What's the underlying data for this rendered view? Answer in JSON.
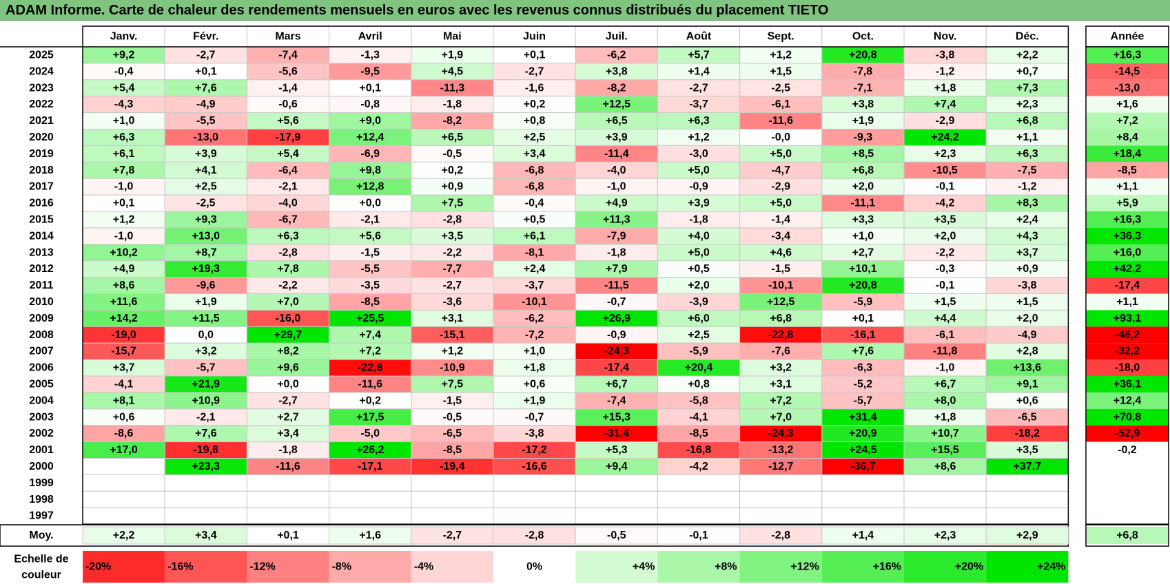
{
  "title": "ADAM Informe. Carte de chaleur des rendements mensuels en euros avec les revenus connus distribués du placement TIETO",
  "chart_data": {
    "type": "heatmap",
    "columns": [
      "Janv.",
      "Févr.",
      "Mars",
      "Avril",
      "Mai",
      "Juin",
      "Juil.",
      "Août",
      "Sept.",
      "Oct.",
      "Nov.",
      "Déc."
    ],
    "year_header": "Année",
    "rows": [
      {
        "label": "2025",
        "cells": [
          "+9,2",
          "-2,7",
          "-7,4",
          "-1,3",
          "+1,9",
          "+0,1",
          "-6,2",
          "+5,7",
          "+1,2",
          "+20,8",
          "-3,8",
          "+2,2"
        ],
        "year": "+16,3"
      },
      {
        "label": "2024",
        "cells": [
          "-0,4",
          "+0,1",
          "-5,6",
          "-9,5",
          "+4,5",
          "-2,7",
          "+3,8",
          "+1,4",
          "+1,5",
          "-7,8",
          "-1,2",
          "+0,7"
        ],
        "year": "-14,5"
      },
      {
        "label": "2023",
        "cells": [
          "+5,4",
          "+7,6",
          "-1,4",
          "+0,1",
          "-11,3",
          "-1,6",
          "-8,2",
          "-2,7",
          "-2,5",
          "-7,1",
          "+1,8",
          "+7,3"
        ],
        "year": "-13,0"
      },
      {
        "label": "2022",
        "cells": [
          "-4,3",
          "-4,9",
          "-0,6",
          "-0,8",
          "-1,8",
          "+0,2",
          "+12,5",
          "-3,7",
          "-6,1",
          "+3,8",
          "+7,4",
          "+2,3"
        ],
        "year": "+1,6"
      },
      {
        "label": "2021",
        "cells": [
          "+1,0",
          "-5,5",
          "+5,6",
          "+9,0",
          "-8,2",
          "+0,8",
          "+6,5",
          "+6,3",
          "-11,6",
          "+1,9",
          "-2,9",
          "+6,8"
        ],
        "year": "+7,2"
      },
      {
        "label": "2020",
        "cells": [
          "+6,3",
          "-13,0",
          "-17,9",
          "+12,4",
          "+6,5",
          "+2,5",
          "+3,9",
          "+1,2",
          "-0,0",
          "-9,3",
          "+24,2",
          "+1,1"
        ],
        "year": "+8,4"
      },
      {
        "label": "2019",
        "cells": [
          "+6,1",
          "+3,9",
          "+5,4",
          "-6,9",
          "-0,5",
          "+3,4",
          "-11,4",
          "-3,0",
          "+5,0",
          "+8,5",
          "+2,3",
          "+6,3"
        ],
        "year": "+18,4"
      },
      {
        "label": "2018",
        "cells": [
          "+7,8",
          "+4,1",
          "-6,4",
          "+9,8",
          "+0,2",
          "-6,8",
          "-4,0",
          "+5,0",
          "-4,7",
          "+6,8",
          "-10,5",
          "-7,5"
        ],
        "year": "-8,5"
      },
      {
        "label": "2017",
        "cells": [
          "-1,0",
          "+2,5",
          "-2,1",
          "+12,8",
          "+0,9",
          "-6,8",
          "-1,0",
          "-0,9",
          "-2,9",
          "+2,0",
          "-0,1",
          "-1,2"
        ],
        "year": "+1,1"
      },
      {
        "label": "2016",
        "cells": [
          "+0,1",
          "-2,5",
          "-4,0",
          "+0,0",
          "+7,5",
          "-0,4",
          "+4,9",
          "+3,9",
          "+5,0",
          "-11,1",
          "-4,2",
          "+8,3"
        ],
        "year": "+5,9"
      },
      {
        "label": "2015",
        "cells": [
          "+1,2",
          "+9,3",
          "-6,7",
          "-2,1",
          "-2,8",
          "+0,5",
          "+11,3",
          "-1,8",
          "-1,4",
          "+3,3",
          "+3,5",
          "+2,4"
        ],
        "year": "+16,3"
      },
      {
        "label": "2014",
        "cells": [
          "-1,0",
          "+13,0",
          "+6,3",
          "+5,6",
          "+3,5",
          "+6,1",
          "-7,9",
          "+4,0",
          "-3,4",
          "+1,0",
          "+2,0",
          "+4,3"
        ],
        "year": "+36,3"
      },
      {
        "label": "2013",
        "cells": [
          "+10,2",
          "+8,7",
          "-2,8",
          "-1,5",
          "-2,2",
          "-8,1",
          "-1,8",
          "+5,0",
          "+4,6",
          "+2,7",
          "-2,2",
          "+3,7"
        ],
        "year": "+16,0"
      },
      {
        "label": "2012",
        "cells": [
          "+4,9",
          "+19,3",
          "+7,8",
          "-5,5",
          "-7,7",
          "+2,4",
          "+7,9",
          "+0,5",
          "-1,5",
          "+10,1",
          "-0,3",
          "+0,9"
        ],
        "year": "+42,2"
      },
      {
        "label": "2011",
        "cells": [
          "+8,6",
          "-9,6",
          "-2,2",
          "-3,5",
          "-2,7",
          "-3,7",
          "-11,5",
          "+2,0",
          "-10,1",
          "+20,8",
          "-0,1",
          "-3,8"
        ],
        "year": "-17,4"
      },
      {
        "label": "2010",
        "cells": [
          "+11,6",
          "+1,9",
          "+7,0",
          "-8,5",
          "-3,6",
          "-10,1",
          "-0,7",
          "-3,9",
          "+12,5",
          "-5,9",
          "+1,5",
          "+1,5"
        ],
        "year": "+1,1"
      },
      {
        "label": "2009",
        "cells": [
          "+14,2",
          "+11,5",
          "-16,0",
          "+25,5",
          "+3,1",
          "-6,2",
          "+26,9",
          "+6,0",
          "+6,8",
          "+0,1",
          "+4,4",
          "+2,0"
        ],
        "year": "+93,1"
      },
      {
        "label": "2008",
        "cells": [
          "-19,0",
          "0,0",
          "+29,7",
          "+7,4",
          "-15,1",
          "-7,2",
          "-0,9",
          "+2,5",
          "-22,8",
          "-16,1",
          "-6,1",
          "-4,9"
        ],
        "year": "-46,2"
      },
      {
        "label": "2007",
        "cells": [
          "-15,7",
          "+3,2",
          "+8,2",
          "+7,2",
          "+1,2",
          "+1,0",
          "-24,3",
          "-5,9",
          "-7,6",
          "+7,6",
          "-11,8",
          "+2,8"
        ],
        "year": "-32,2"
      },
      {
        "label": "2006",
        "cells": [
          "+3,7",
          "-5,7",
          "+9,6",
          "-22,8",
          "-10,9",
          "+1,8",
          "-17,4",
          "+20,4",
          "+3,2",
          "-6,3",
          "-1,0",
          "+13,6"
        ],
        "year": "-18,0"
      },
      {
        "label": "2005",
        "cells": [
          "-4,1",
          "+21,9",
          "+0,0",
          "-11,6",
          "+7,5",
          "+0,6",
          "+6,7",
          "+0,8",
          "+3,1",
          "-5,2",
          "+6,7",
          "+9,1"
        ],
        "year": "+36,1"
      },
      {
        "label": "2004",
        "cells": [
          "+8,1",
          "+10,9",
          "-2,7",
          "+0,2",
          "-1,5",
          "+1,9",
          "-7,4",
          "-5,8",
          "+7,2",
          "-5,7",
          "+8,0",
          "+0,6"
        ],
        "year": "+12,4"
      },
      {
        "label": "2003",
        "cells": [
          "+0,6",
          "-2,1",
          "+2,7",
          "+17,5",
          "-0,5",
          "-0,7",
          "+15,3",
          "-4,1",
          "+7,0",
          "+31,4",
          "+1,8",
          "-6,5"
        ],
        "year": "+70,8"
      },
      {
        "label": "2002",
        "cells": [
          "-8,6",
          "+7,6",
          "+3,4",
          "-5,0",
          "-6,5",
          "-3,8",
          "-31,4",
          "-8,5",
          "-24,3",
          "+20,9",
          "+10,7",
          "-18,2"
        ],
        "year": "-52,9"
      },
      {
        "label": "2001",
        "cells": [
          "+17,0",
          "-19,6",
          "-1,8",
          "+26,2",
          "-8,5",
          "-17,2",
          "+5,3",
          "-16,8",
          "-13,2",
          "+24,5",
          "+15,5",
          "+3,5"
        ],
        "year": "-0,2"
      },
      {
        "label": "2000",
        "cells": [
          "",
          "+23,3",
          "-11,6",
          "-17,1",
          "-19,4",
          "-16,6",
          "+9,4",
          "-4,2",
          "-12,7",
          "-36,7",
          "+8,6",
          "+37,7"
        ],
        "year": ""
      },
      {
        "label": "1999",
        "cells": [
          "",
          "",
          "",
          "",
          "",
          "",
          "",
          "",
          "",
          "",
          "",
          ""
        ],
        "year": ""
      },
      {
        "label": "1998",
        "cells": [
          "",
          "",
          "",
          "",
          "",
          "",
          "",
          "",
          "",
          "",
          "",
          ""
        ],
        "year": ""
      },
      {
        "label": "1997",
        "cells": [
          "",
          "",
          "",
          "",
          "",
          "",
          "",
          "",
          "",
          "",
          "",
          ""
        ],
        "year": ""
      }
    ],
    "average": {
      "label": "Moy.",
      "cells": [
        "+2,2",
        "+3,4",
        "+0,1",
        "+1,6",
        "-2,7",
        "-2,8",
        "-0,5",
        "-0,1",
        "-2,8",
        "+1,4",
        "+2,3",
        "+2,9"
      ],
      "year": "+6,8"
    },
    "scale": {
      "label_line1": "Echelle de",
      "label_line2": "couleur",
      "stops": [
        "-20%",
        "-16%",
        "-12%",
        "-8%",
        "-4%",
        "0%",
        "+4%",
        "+8%",
        "+12%",
        "+16%",
        "+20%",
        "+24%"
      ],
      "values": [
        -20,
        -16,
        -12,
        -8,
        -4,
        0,
        4,
        8,
        12,
        16,
        20,
        24
      ]
    },
    "colors": {
      "negative": "#ff0000",
      "positive": "#00e600",
      "neutral": "#ffffff",
      "title_bg": "#7fc47f"
    }
  }
}
